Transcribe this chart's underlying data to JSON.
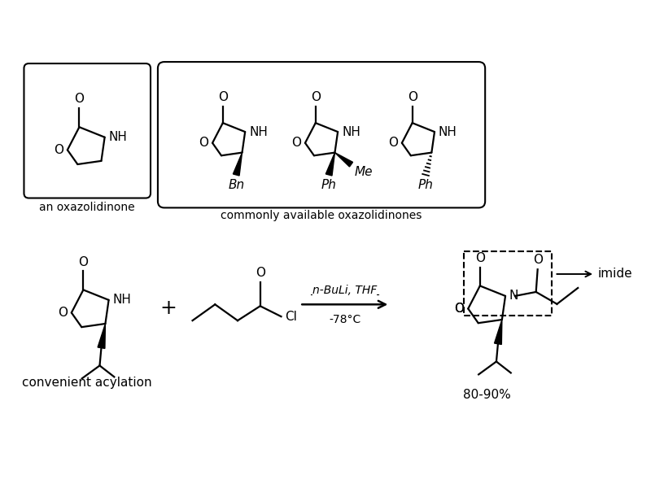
{
  "bg_color": "#ffffff",
  "label_an_oxaz": "an oxazolidinone",
  "label_common": "commonly available oxazolidinones",
  "label_acylation": "convenient acylation",
  "label_yield": "80-90%",
  "label_reagent_top": "n-BuLi, THF",
  "label_reagent_bot": "-78°C",
  "label_imide": "←  imide",
  "lw": 1.6,
  "fs": 11,
  "fs_small": 10
}
